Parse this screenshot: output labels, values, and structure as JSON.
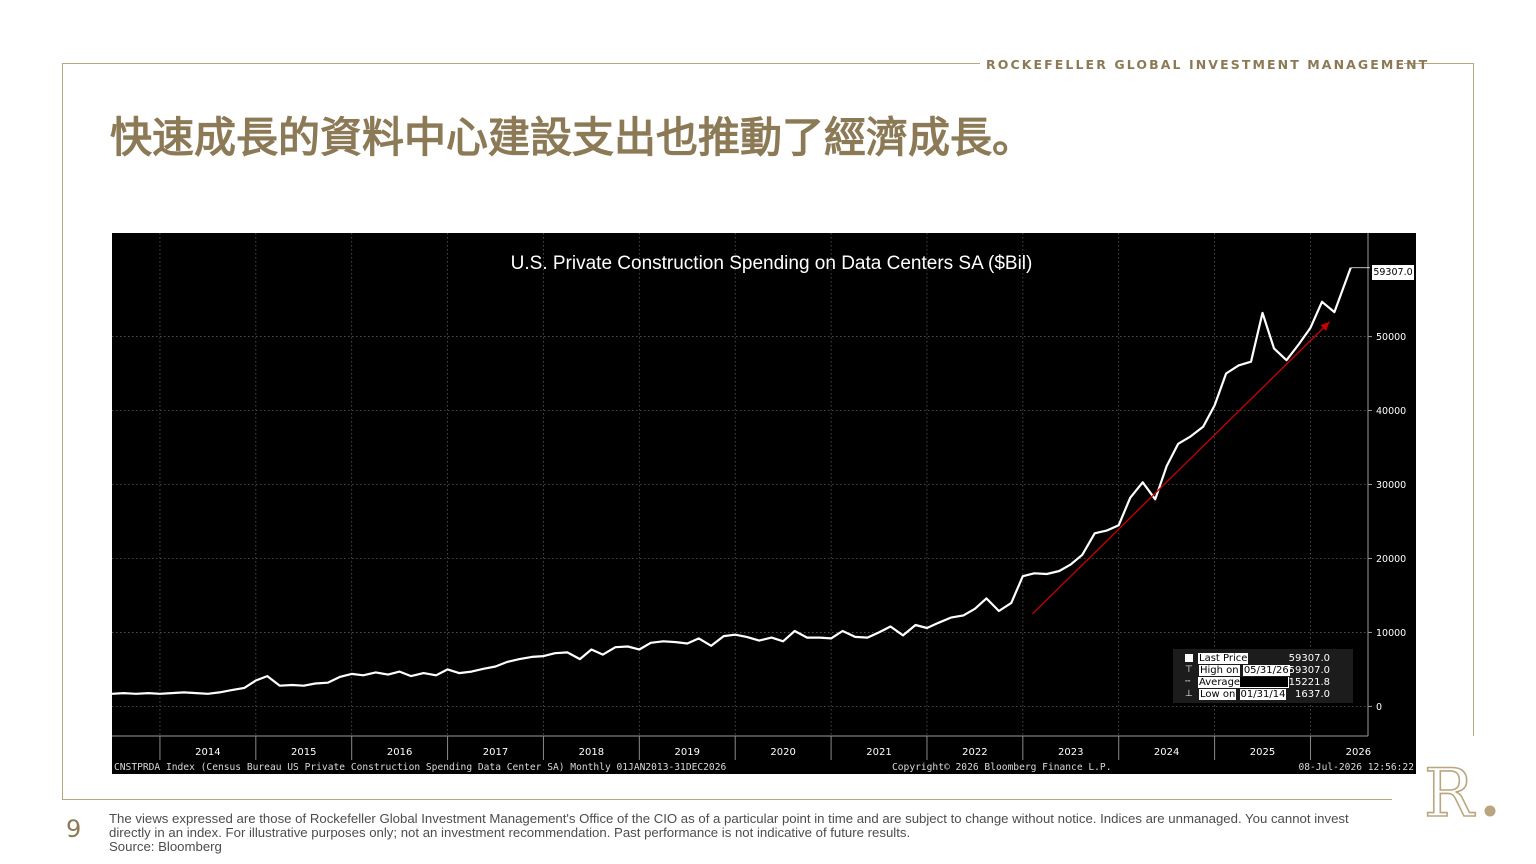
{
  "header": {
    "brand": "ROCKEFELLER GLOBAL INVESTMENT MANAGEMENT",
    "title": "快速成長的資料中心建設支出也推動了經濟成長。"
  },
  "colors": {
    "accent": "#8c7a57",
    "frame": "#b9a680",
    "chart_bg": "#000000",
    "series_line": "#ffffff",
    "trend_arrow": "#cc0000"
  },
  "chart_data": {
    "type": "line",
    "title": "U.S. Private Construction Spending on Data Centers SA ($Bil)",
    "x_ticks": [
      "2014",
      "2015",
      "2016",
      "2017",
      "2018",
      "2019",
      "2020",
      "2021",
      "2022",
      "2023",
      "2024",
      "2025",
      "2026"
    ],
    "y_ticks": [
      "0",
      "10000",
      "20000",
      "30000",
      "40000",
      "50000"
    ],
    "ylim": [
      -4000,
      64000
    ],
    "xlim": [
      2013.5,
      2026.6
    ],
    "grid": true,
    "y_axis_side": "right",
    "series": [
      {
        "x": [
          2013.5,
          2013.62,
          2013.75,
          2013.88,
          2014.0,
          2014.12,
          2014.25,
          2014.38,
          2014.5,
          2014.62,
          2014.75,
          2014.88,
          2015.0,
          2015.12,
          2015.25,
          2015.38,
          2015.5,
          2015.62,
          2015.75,
          2015.88,
          2016.0,
          2016.12,
          2016.25,
          2016.38,
          2016.5,
          2016.62,
          2016.75,
          2016.88,
          2017.0,
          2017.12,
          2017.25,
          2017.38,
          2017.5,
          2017.62,
          2017.75,
          2017.88,
          2018.0,
          2018.12,
          2018.25,
          2018.38,
          2018.5,
          2018.62,
          2018.75,
          2018.88,
          2019.0,
          2019.12,
          2019.25,
          2019.38,
          2019.5,
          2019.62,
          2019.75,
          2019.88,
          2020.0,
          2020.12,
          2020.25,
          2020.38,
          2020.5,
          2020.62,
          2020.75,
          2020.88,
          2021.0,
          2021.12,
          2021.25,
          2021.38,
          2021.5,
          2021.62,
          2021.75,
          2021.88,
          2022.0,
          2022.12,
          2022.25,
          2022.38,
          2022.5,
          2022.62,
          2022.75,
          2022.88,
          2023.0,
          2023.12,
          2023.25,
          2023.38,
          2023.5,
          2023.62,
          2023.75,
          2023.88,
          2024.0,
          2024.12,
          2024.25,
          2024.38,
          2024.5,
          2024.62,
          2024.75,
          2024.88,
          2025.0,
          2025.12,
          2025.25,
          2025.38,
          2025.5,
          2025.62,
          2025.75,
          2025.88,
          2026.0,
          2026.12,
          2026.25,
          2026.42
        ],
        "values": [
          1700,
          1800,
          1700,
          1800,
          1700,
          1800,
          1900,
          1800,
          1700,
          1900,
          2200,
          2500,
          3500,
          4100,
          2800,
          2900,
          2800,
          3100,
          3200,
          4000,
          4400,
          4200,
          4600,
          4300,
          4700,
          4100,
          4500,
          4200,
          5000,
          4500,
          4700,
          5100,
          5400,
          6000,
          6400,
          6700,
          6800,
          7200,
          7300,
          6400,
          7700,
          7000,
          8000,
          8100,
          7700,
          8600,
          8800,
          8700,
          8500,
          9200,
          8200,
          9500,
          9700,
          9400,
          8900,
          9300,
          8800,
          10200,
          9300,
          9300,
          9200,
          10200,
          9400,
          9300,
          10000,
          10800,
          9600,
          11000,
          10600,
          11300,
          12000,
          12300,
          13200,
          14600,
          12900,
          14000,
          17600,
          18000,
          17900,
          18300,
          19200,
          20500,
          23400,
          23800,
          24500,
          28200,
          30300,
          28000,
          32500,
          35500,
          36500,
          37800,
          40700,
          45000,
          46100,
          46600,
          53200,
          48400,
          46800,
          49000,
          51200,
          54700,
          53300,
          59307
        ]
      }
    ],
    "last_value_tag": "59307.0",
    "legend": [
      {
        "label": "Last Price",
        "date": "",
        "value": "59307.0"
      },
      {
        "label": "High on",
        "date": "05/31/26",
        "value": "59307.0"
      },
      {
        "label": "Average",
        "date": "",
        "value": "15221.8"
      },
      {
        "label": "Low on",
        "date": "01/31/14",
        "value": "1637.0"
      }
    ],
    "footer_left": "CNSTPRDA Index (Census Bureau US Private Construction Spending Data Center SA) Monthly 01JAN2013-31DEC2026",
    "footer_center": "Copyright© 2026 Bloomberg Finance L.P.",
    "footer_right": "08-Jul-2026 12:56:22",
    "trend_arrow": {
      "from": [
        2023.1,
        12500
      ],
      "to": [
        2026.2,
        52000
      ]
    }
  },
  "footer": {
    "page_number": "9",
    "disclaimer_line1": "The views expressed are those of Rockefeller Global Investment Management's Office of the CIO as of a particular point in time and are subject to change without notice. Indices are unmanaged. You cannot invest",
    "disclaimer_line2": "directly in an index. For illustrative purposes only; not an investment recommendation. Past performance is not indicative of future results.",
    "source": "Source: Bloomberg",
    "logo_icon": "rockefeller-r-logo-icon"
  }
}
